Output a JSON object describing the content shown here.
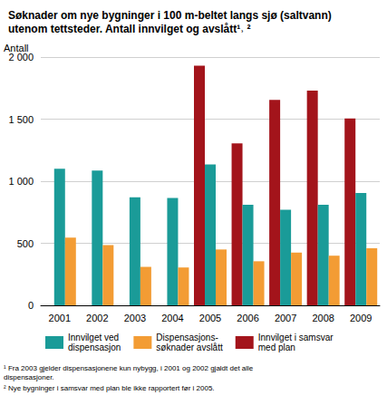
{
  "chart_data": {
    "type": "bar",
    "title": "Søknader om nye bygninger i 100 m-beltet langs sjø (saltvann)\nutenom tettsteder. Antall innvilget og avslått¹˒ ²",
    "y_label": "Antall",
    "categories": [
      "2001",
      "2002",
      "2003",
      "2004",
      "2005",
      "2006",
      "2007",
      "2008",
      "2009"
    ],
    "series": [
      {
        "name": "Innvilget ved\ndispensasjon",
        "color": "#1a9b98",
        "values": [
          1100,
          1085,
          870,
          865,
          1135,
          810,
          770,
          810,
          905
        ]
      },
      {
        "name": "Dispensasjons-\nsøknader avslått",
        "color": "#f39c34",
        "values": [
          545,
          485,
          310,
          305,
          450,
          355,
          425,
          400,
          460
        ]
      },
      {
        "name": "Innvilget i samsvar\nmed plan",
        "color": "#a3141b",
        "values": [
          null,
          null,
          null,
          null,
          1930,
          1305,
          1655,
          1730,
          1505
        ]
      }
    ],
    "ylim": [
      0,
      2000
    ],
    "yticks": [
      0,
      500,
      {
        "value": 1000,
        "label": "1 000"
      },
      {
        "value": 1500,
        "label": "1 500"
      },
      {
        "value": 2000,
        "label": "2 000"
      }
    ],
    "grid": true,
    "legend": "bottom",
    "notes": [
      "¹ Fra 2003 gjelder dispensasjonene kun nybygg, i 2001 og 2002 gjaldt det alle\ndispensasjoner.",
      "² Nye bygninger i samsvar med plan ble ikke rapportert før i 2005."
    ]
  }
}
